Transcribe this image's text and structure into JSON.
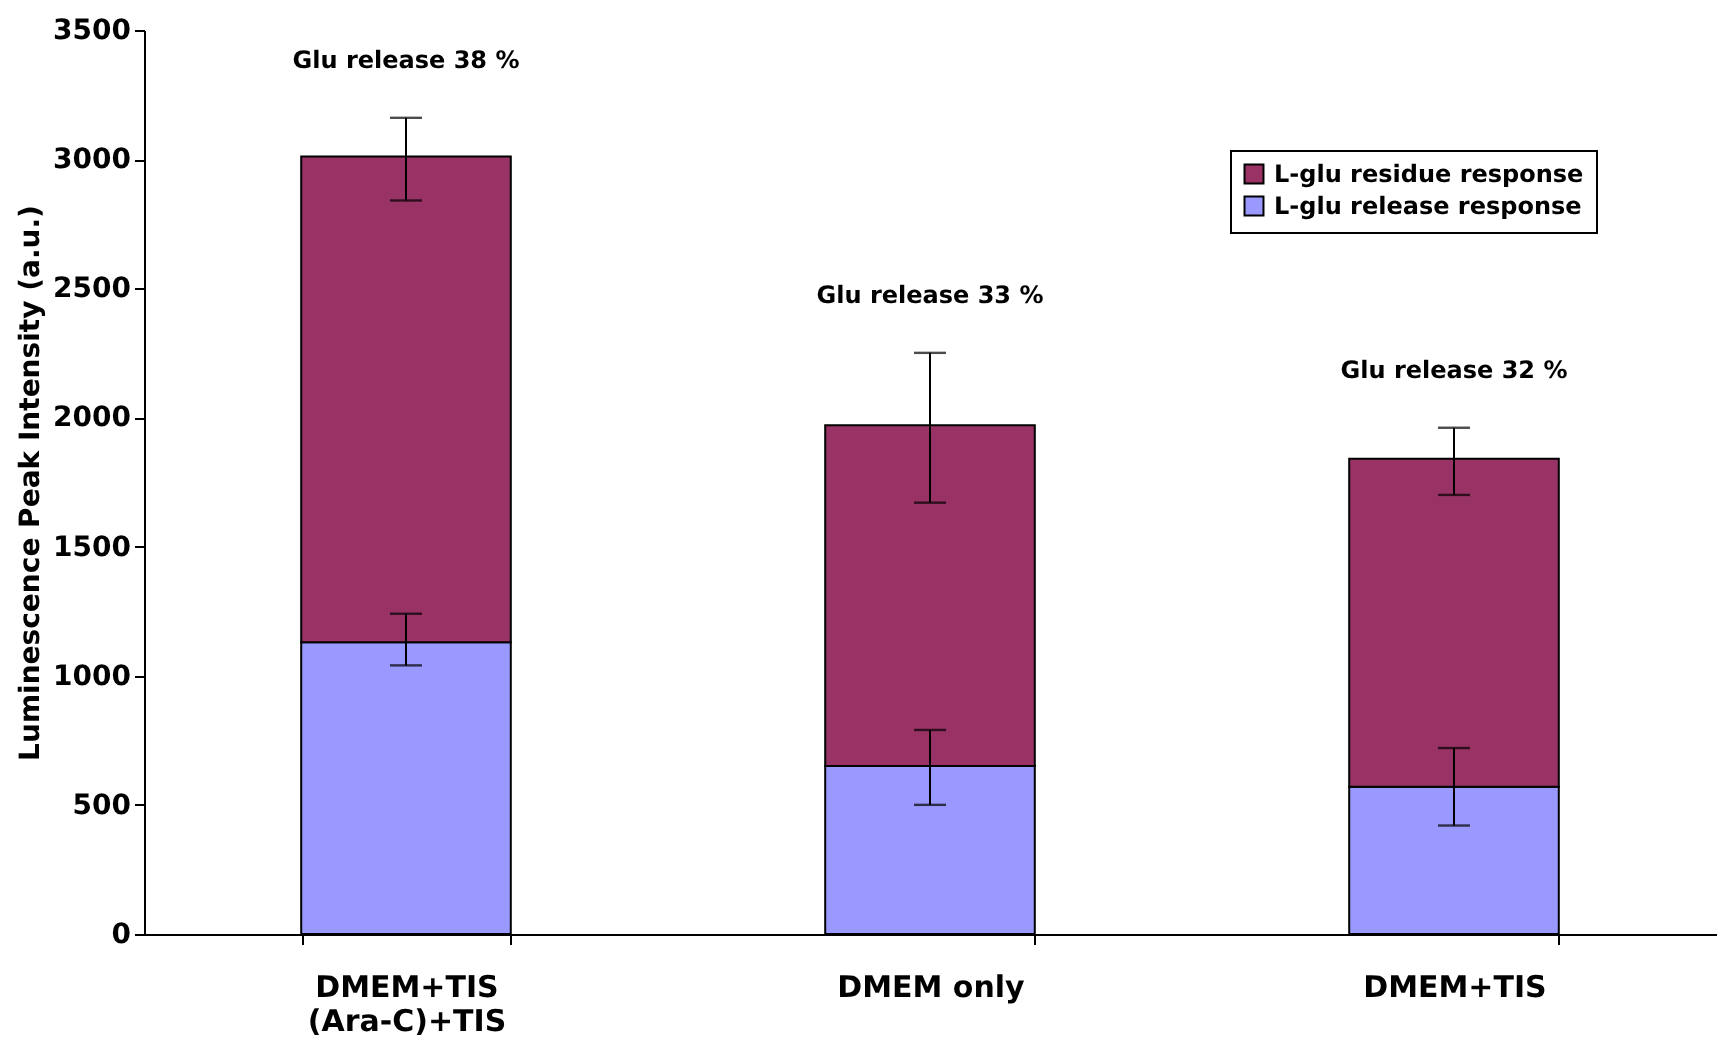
{
  "chart_data": {
    "type": "bar",
    "stacked": true,
    "ylabel": "Luminescence Peak Intensity (a.u.)",
    "categories": [
      "DMEM+TIS\n(Ara-C)+TIS",
      "DMEM only",
      "DMEM+TIS"
    ],
    "series": [
      {
        "name": "L-glu release response",
        "color": "#9999ff",
        "values": [
          1130,
          650,
          570
        ],
        "errors": [
          [
            1040,
            1240
          ],
          [
            500,
            790
          ],
          [
            420,
            720
          ]
        ]
      },
      {
        "name": "L-glu residue response",
        "color": "#993366",
        "values": [
          1880,
          1320,
          1270
        ],
        "errors": [
          [
            2840,
            3160
          ],
          [
            1670,
            2250
          ],
          [
            1700,
            1960
          ]
        ]
      }
    ],
    "ylim": [
      0,
      3500
    ],
    "yticks": [
      0,
      500,
      1000,
      1500,
      2000,
      2500,
      3000,
      3500
    ],
    "grid": false,
    "legend": "top right",
    "annotations": [
      {
        "text": "Glu release 38 %",
        "x": "DMEM+TIS\n(Ara-C)+TIS",
        "y": 3160
      },
      {
        "text": "Glu release 33 %",
        "x": "DMEM only",
        "y": 2250
      },
      {
        "text": "Glu release 32 %",
        "x": "DMEM+TIS",
        "y": 1960
      }
    ]
  }
}
